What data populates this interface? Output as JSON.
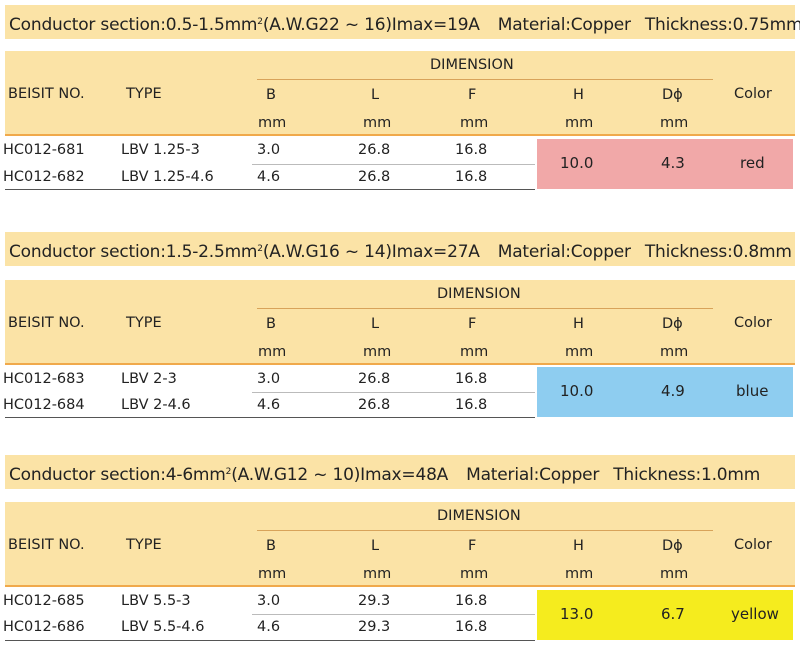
{
  "sections": [
    {
      "cond_prefix": "Conductor section:0.5-1.5mm",
      "cond_sup": "2",
      "cond_suffix": "(A.W.G22 ~ 16)Imax=19A",
      "material": "Material:Copper",
      "thickness": "Thickness:0.75mm",
      "color_hex": "#f1a8a8",
      "h": "10.0",
      "d": "4.3",
      "color_name": "red",
      "rows": [
        {
          "no": "HC012-681",
          "type": "LBV 1.25-3",
          "b": "3.0",
          "l": "26.8",
          "f": "16.8"
        },
        {
          "no": "HC012-682",
          "type": "LBV 1.25-4.6",
          "b": "4.6",
          "l": "26.8",
          "f": "16.8"
        }
      ]
    },
    {
      "cond_prefix": "Conductor section:1.5-2.5mm",
      "cond_sup": "2",
      "cond_suffix": "(A.W.G16 ~ 14)Imax=27A",
      "material": "Material:Copper",
      "thickness": "Thickness:0.8mm",
      "color_hex": "#8ecdf0",
      "h": "10.0",
      "d": "4.9",
      "color_name": "blue",
      "rows": [
        {
          "no": "HC012-683",
          "type": "LBV 2-3",
          "b": "3.0",
          "l": "26.8",
          "f": "16.8"
        },
        {
          "no": "HC012-684",
          "type": "LBV 2-4.6",
          "b": "4.6",
          "l": "26.8",
          "f": "16.8"
        }
      ]
    },
    {
      "cond_prefix": "Conductor section:4-6mm",
      "cond_sup": "2",
      "cond_suffix": "(A.W.G12 ~ 10)Imax=48A",
      "material": "Material:Copper",
      "thickness": "Thickness:1.0mm",
      "color_hex": "#f5ec1e",
      "h": "13.0",
      "d": "6.7",
      "color_name": "yellow",
      "rows": [
        {
          "no": "HC012-685",
          "type": "LBV 5.5-3",
          "b": "3.0",
          "l": "29.3",
          "f": "16.8"
        },
        {
          "no": "HC012-686",
          "type": "LBV 5.5-4.6",
          "b": "4.6",
          "l": "29.3",
          "f": "16.8"
        }
      ]
    }
  ],
  "headers": {
    "beisit_no": "BEISIT NO.",
    "type": "TYPE",
    "dimension": "DIMENSION",
    "b": "B",
    "l": "L",
    "f": "F",
    "h": "H",
    "d": "Dϕ",
    "color": "Color",
    "unit": "mm"
  }
}
